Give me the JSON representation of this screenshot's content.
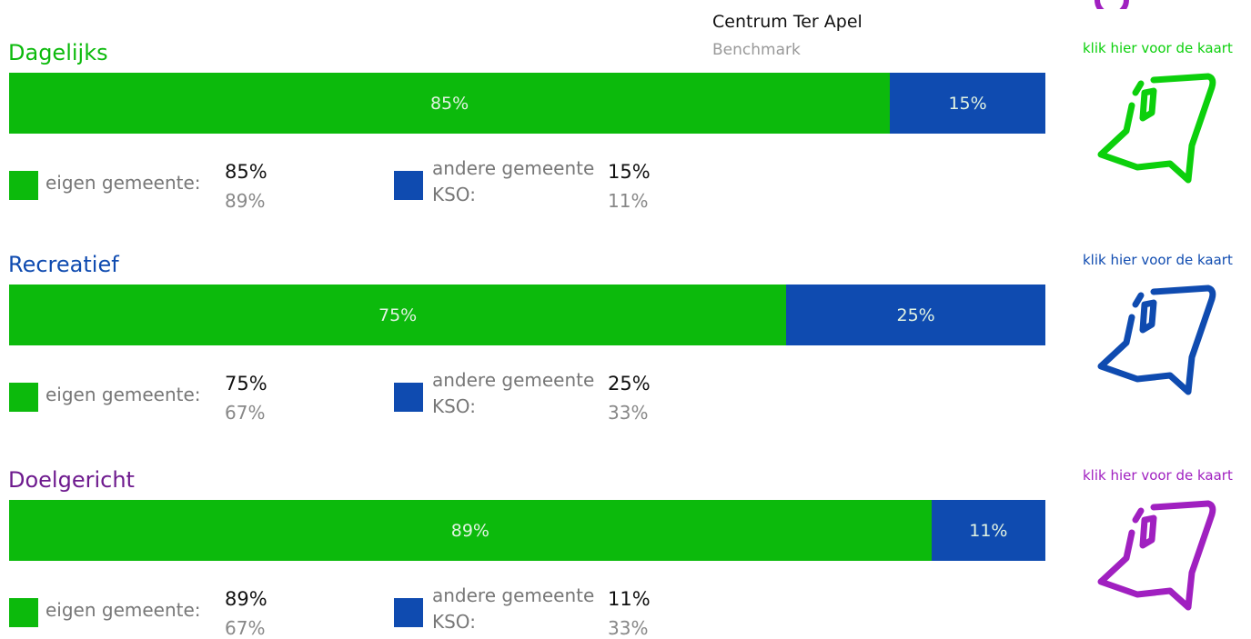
{
  "legend": {
    "primary": "Centrum Ter Apel",
    "benchmark": "Benchmark"
  },
  "colors": {
    "own": "#0cba0c",
    "other": "#0f4bb0"
  },
  "sections": [
    {
      "title": "Dagelijks",
      "title_color": "#0cba0c",
      "link": "klik hier voor de kaart",
      "icon_color": "#0cd00c",
      "bar": {
        "values": [
          85,
          15
        ],
        "value_labels": [
          "85%",
          "15%"
        ]
      },
      "own": {
        "label": "eigen gemeente:",
        "value": 85,
        "value_label": "85%",
        "benchmark": 89,
        "benchmark_label": "89%"
      },
      "other": {
        "label": "andere gemeente KSO:",
        "value": 15,
        "value_label": "15%",
        "benchmark": 11,
        "benchmark_label": "11%"
      }
    },
    {
      "title": "Recreatief",
      "title_color": "#0f4bb0",
      "link": "klik hier voor de kaart",
      "icon_color": "#0f4bb0",
      "bar": {
        "values": [
          75,
          25
        ],
        "value_labels": [
          "75%",
          "25%"
        ]
      },
      "own": {
        "label": "eigen gemeente:",
        "value": 75,
        "value_label": "75%",
        "benchmark": 67,
        "benchmark_label": "67%"
      },
      "other": {
        "label": "andere gemeente KSO:",
        "value": 25,
        "value_label": "25%",
        "benchmark": 33,
        "benchmark_label": "33%"
      }
    },
    {
      "title": "Doelgericht",
      "title_color": "#6e1a8e",
      "link": "klik hier voor de kaart",
      "icon_color": "#a020c0",
      "bar": {
        "values": [
          89,
          11
        ],
        "value_labels": [
          "89%",
          "11%"
        ]
      },
      "own": {
        "label": "eigen gemeente:",
        "value": 89,
        "value_label": "89%",
        "benchmark": 67,
        "benchmark_label": "67%"
      },
      "other": {
        "label": "andere gemeente KSO:",
        "value": 11,
        "value_label": "11%",
        "benchmark": 33,
        "benchmark_label": "33%"
      }
    }
  ]
}
